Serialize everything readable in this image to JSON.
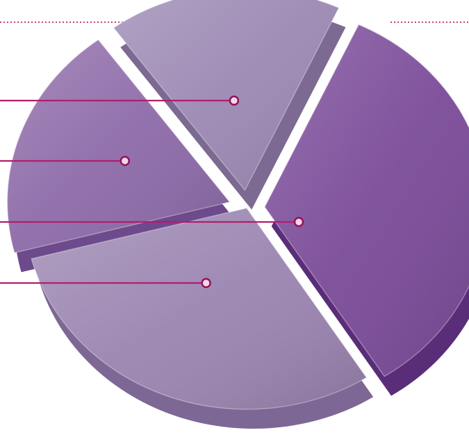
{
  "chart_data": {
    "type": "pie",
    "title": "",
    "style": "3d-exploded",
    "legend": "none",
    "slices": [
      {
        "value": 34,
        "exploded": true
      },
      {
        "value": 30,
        "exploded": false
      },
      {
        "value": 19,
        "exploded": true
      },
      {
        "value": 17,
        "exploded": true
      }
    ]
  },
  "colors": {
    "line": "#b01e6e",
    "dotted_rule": "#c0417f",
    "dot_ring": "#8f1459",
    "dot_fill": "#f3d6e6",
    "slices": [
      "#7a4a98",
      "#9a84b0",
      "#8d6aa8",
      "#9b88b3"
    ],
    "slice_sides": [
      "#5a2d78",
      "#7d6795",
      "#6d4a8c",
      "#7c6a92"
    ]
  }
}
